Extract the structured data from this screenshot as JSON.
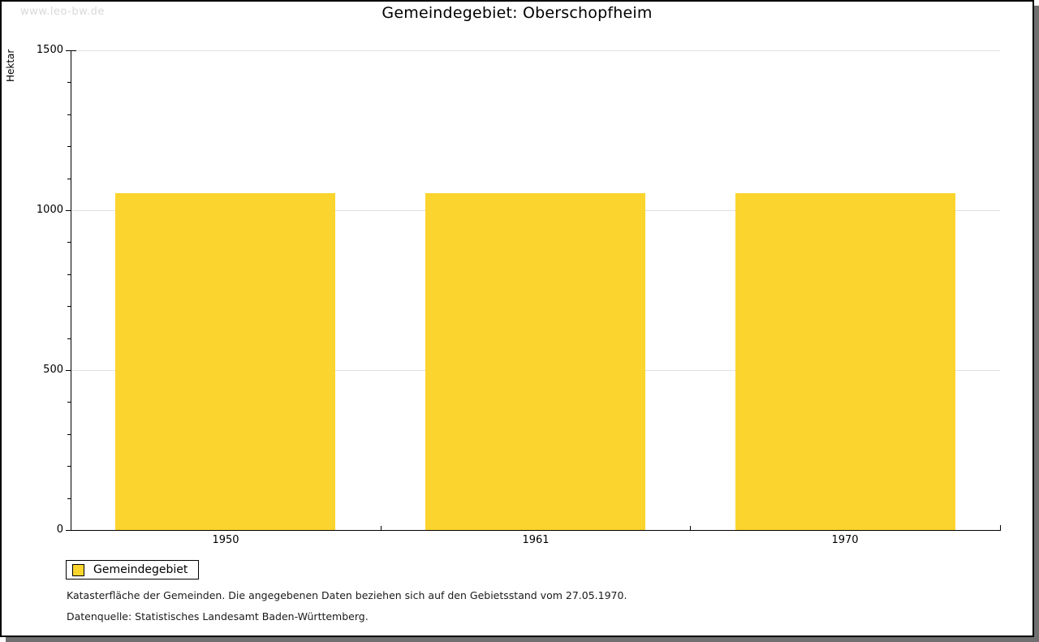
{
  "watermark": "www.leo-bw.de",
  "header": {
    "title": "Gemeindegebiet: Oberschopfheim"
  },
  "chart_data": {
    "type": "bar",
    "title": "Gemeindegebiet: Oberschopfheim",
    "categories": [
      "1950",
      "1961",
      "1970"
    ],
    "series": [
      {
        "name": "Gemeindegebiet",
        "values": [
          1053,
          1053,
          1053
        ]
      }
    ],
    "xlabel": "",
    "ylabel": "Hektar",
    "ylim": [
      0,
      1500
    ],
    "yticks_labeled": [
      0,
      500,
      1000,
      1500
    ],
    "ytick_major": 500,
    "ytick_minor": 100,
    "grid": true,
    "legend_position": "bottom-left"
  },
  "legend": {
    "label": "Gemeindegebiet"
  },
  "footnotes": {
    "line1": "Katasterfläche der Gemeinden. Die angegebenen Daten beziehen sich auf den Gebietsstand vom 27.05.1970.",
    "line2": "Datenquelle: Statistisches Landesamt Baden-Württemberg."
  },
  "colors": {
    "bar": "#fcd42e",
    "gridline": "#e0e0e0",
    "axis": "#000000",
    "watermark": "#d9d9d9",
    "shadow": "#707070",
    "text": "#000000"
  }
}
